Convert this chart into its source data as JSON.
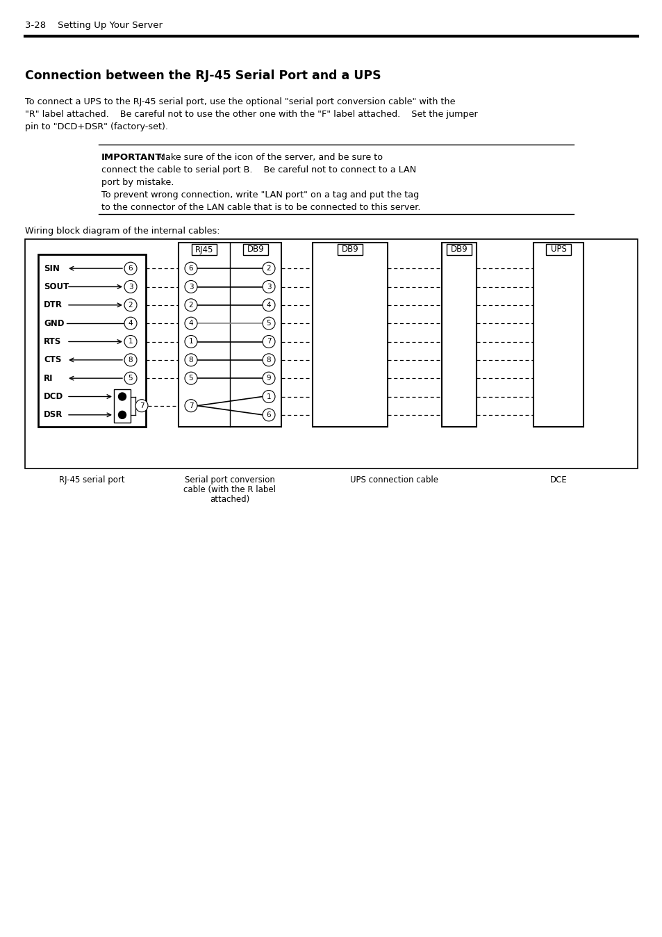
{
  "page_header": "3-28    Setting Up Your Server",
  "section_title": "Connection between the RJ-45 Serial Port and a UPS",
  "body_line1": "To connect a UPS to the RJ-45 serial port, use the optional \"serial port conversion cable\" with the",
  "body_line2": "\"R\" label attached.    Be careful not to use the other one with the \"F\" label attached.    Set the jumper",
  "body_line3": "pin to \"DCD+DSR\" (factory-set).",
  "important_label": "IMPORTANT:",
  "important_line1": " Make sure of the icon of the server, and be sure to",
  "important_line2": "connect the cable to serial port B.    Be careful not to connect to a LAN",
  "important_line3": "port by mistake.",
  "important_line4": "To prevent wrong connection, write \"LAN port\" on a tag and put the tag",
  "important_line5": "to the connector of the LAN cable that is to be connected to this server.",
  "wiring_text": "Wiring block diagram of the internal cables:",
  "caption_rj45": "RJ-45 serial port",
  "caption_conv1": "Serial port conversion",
  "caption_conv2": "cable (with the R label",
  "caption_conv3": "attached)",
  "caption_ups": "UPS connection cable",
  "caption_dce": "DCE",
  "bg_color": "#ffffff",
  "text_color": "#000000"
}
